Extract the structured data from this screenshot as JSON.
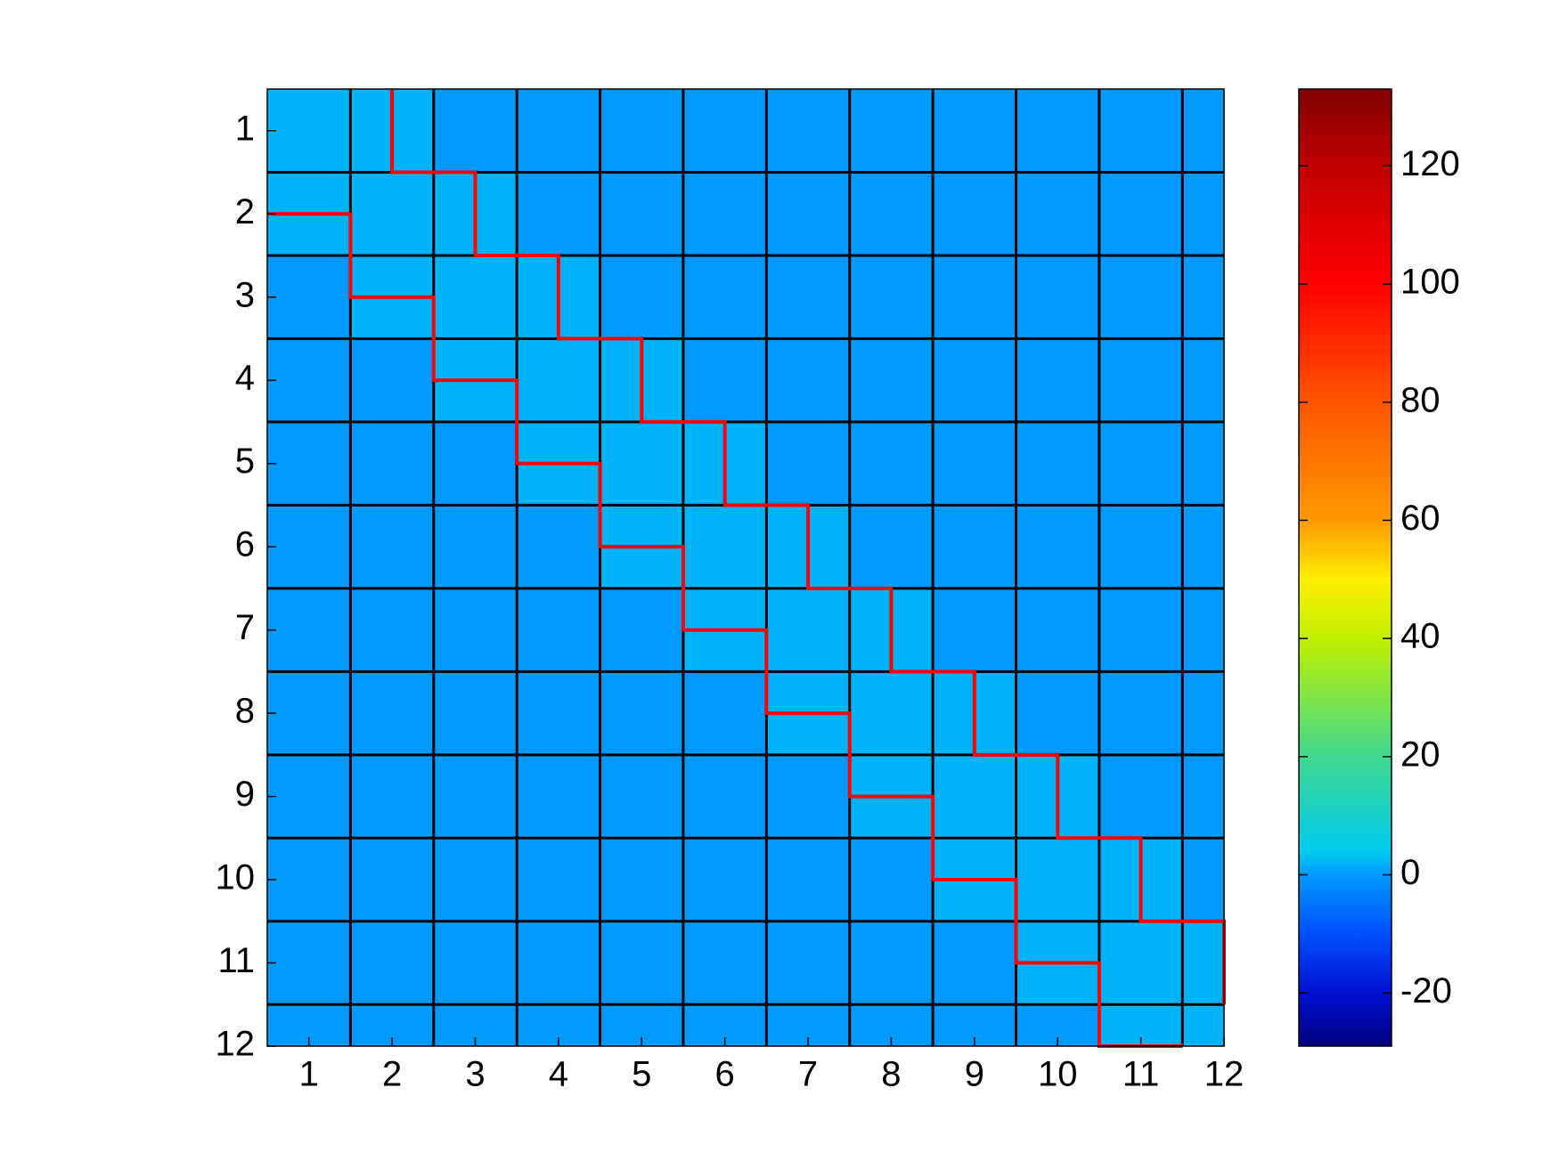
{
  "chart_data": {
    "type": "heatmap",
    "x": [
      1,
      2,
      3,
      4,
      5,
      6,
      7,
      8,
      9,
      10,
      11,
      12
    ],
    "y": [
      1,
      2,
      3,
      4,
      5,
      6,
      7,
      8,
      9,
      10,
      11,
      12
    ],
    "xlim": [
      0.5,
      12
    ],
    "ylim": [
      0.5,
      12
    ],
    "xticks": [
      1,
      2,
      3,
      4,
      5,
      6,
      7,
      8,
      9,
      10,
      11,
      12
    ],
    "yticks": [
      1,
      2,
      3,
      4,
      5,
      6,
      7,
      8,
      9,
      10,
      11,
      12
    ],
    "values": [
      [
        2,
        2,
        0,
        0,
        0,
        0,
        0,
        0,
        0,
        0,
        0,
        0
      ],
      [
        2,
        2,
        2,
        0,
        0,
        0,
        0,
        0,
        0,
        0,
        0,
        0
      ],
      [
        0,
        2,
        2,
        2,
        0,
        0,
        0,
        0,
        0,
        0,
        0,
        0
      ],
      [
        0,
        0,
        2,
        2,
        2,
        0,
        0,
        0,
        0,
        0,
        0,
        0
      ],
      [
        0,
        0,
        0,
        2,
        2,
        2,
        0,
        0,
        0,
        0,
        0,
        0
      ],
      [
        0,
        0,
        0,
        0,
        2,
        2,
        2,
        0,
        0,
        0,
        0,
        0
      ],
      [
        0,
        0,
        0,
        0,
        0,
        2,
        2,
        2,
        0,
        0,
        0,
        0
      ],
      [
        0,
        0,
        0,
        0,
        0,
        0,
        2,
        2,
        2,
        0,
        0,
        0
      ],
      [
        0,
        0,
        0,
        0,
        0,
        0,
        0,
        2,
        2,
        2,
        0,
        0
      ],
      [
        0,
        0,
        0,
        0,
        0,
        0,
        0,
        0,
        2,
        2,
        2,
        0
      ],
      [
        0,
        0,
        0,
        0,
        0,
        0,
        0,
        0,
        0,
        2,
        2,
        2
      ],
      [
        0,
        0,
        0,
        0,
        0,
        0,
        0,
        0,
        0,
        0,
        2,
        2
      ]
    ],
    "block_edges": [
      1.5,
      2.5,
      3.5,
      4.5,
      5.5,
      6.5,
      7.5,
      8.5,
      9.5,
      10.5,
      11.5
    ],
    "band_color": "#ff0000",
    "band_lower": {
      "x": [
        0.5,
        1.5,
        1.5,
        2.5,
        2.5,
        3.5,
        3.5,
        4.5,
        4.5,
        5.5,
        5.5,
        6.5,
        6.5,
        7.5,
        7.5,
        8.5,
        8.5,
        9.5,
        9.5,
        10.5,
        10.5,
        11.5
      ],
      "y": [
        2,
        2,
        3,
        3,
        4,
        4,
        5,
        5,
        6,
        6,
        7,
        7,
        8,
        8,
        9,
        9,
        10,
        10,
        11,
        11,
        12,
        12
      ]
    },
    "band_upper": {
      "x": [
        2,
        2,
        3,
        3,
        4,
        4,
        5,
        5,
        6,
        6,
        7,
        7,
        8,
        8,
        9,
        9,
        10,
        10,
        11,
        11,
        12,
        12
      ],
      "y": [
        0.5,
        1.5,
        1.5,
        2.5,
        2.5,
        3.5,
        3.5,
        4.5,
        4.5,
        5.5,
        5.5,
        6.5,
        6.5,
        7.5,
        7.5,
        8.5,
        8.5,
        9.5,
        9.5,
        10.5,
        10.5,
        11.5
      ]
    },
    "colorbar": {
      "clim": [
        -29,
        133
      ],
      "ticks": [
        -20,
        0,
        20,
        40,
        60,
        80,
        100,
        120
      ],
      "colormap": [
        [
          -29,
          "#000080"
        ],
        [
          -20,
          "#0010d0"
        ],
        [
          -10,
          "#0050ff"
        ],
        [
          0,
          "#0099ff"
        ],
        [
          4,
          "#00ccee"
        ],
        [
          20,
          "#40d890"
        ],
        [
          40,
          "#c0f000"
        ],
        [
          50,
          "#ffee00"
        ],
        [
          60,
          "#ff9900"
        ],
        [
          80,
          "#ff5500"
        ],
        [
          100,
          "#ff0000"
        ],
        [
          120,
          "#c00000"
        ],
        [
          133,
          "#800000"
        ]
      ]
    }
  }
}
